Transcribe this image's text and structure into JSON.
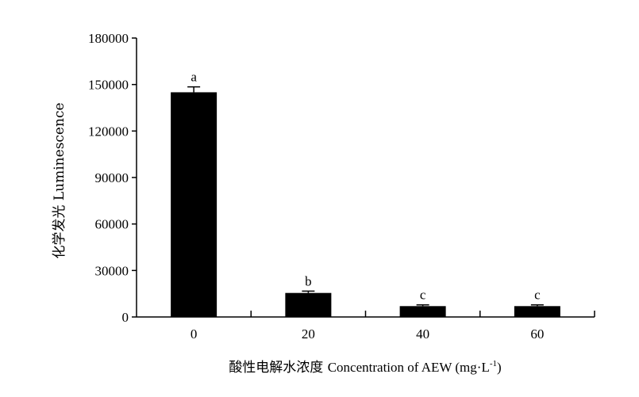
{
  "chart_data": {
    "type": "bar",
    "xlabel_cn": "酸性电解水浓度",
    "xlabel_en": "Concentration of AEW (mg·L",
    "xlabel_sup": "-1",
    "xlabel_close": ")",
    "ylabel": "化学发光 Luminescence",
    "categories": [
      "0",
      "20",
      "40",
      "60"
    ],
    "values": [
      145000,
      15500,
      7000,
      7000
    ],
    "errors": [
      3500,
      1200,
      800,
      800
    ],
    "significance": [
      "a",
      "b",
      "c",
      "c"
    ],
    "ylim": [
      0,
      180000
    ],
    "yticks": [
      "0",
      "30000",
      "60000",
      "90000",
      "120000",
      "150000",
      "180000"
    ],
    "grid": false,
    "bar_color": "#000000"
  }
}
